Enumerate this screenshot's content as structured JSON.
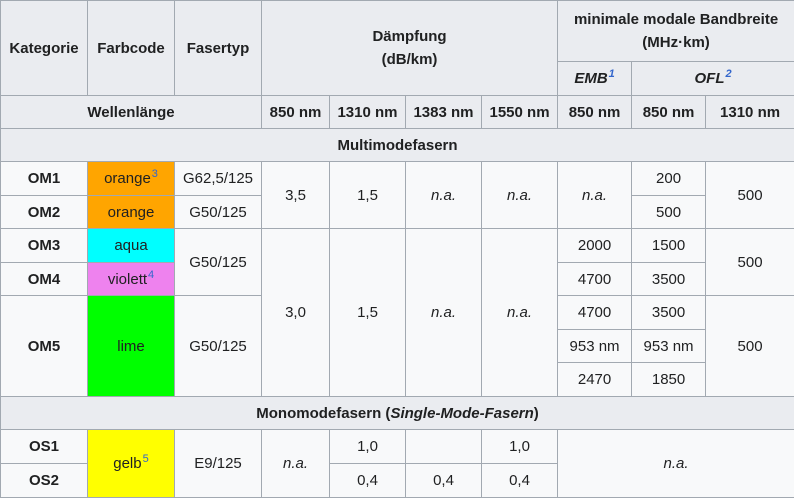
{
  "header": {
    "kategorie": "Kategorie",
    "farbcode": "Farbcode",
    "fasertyp": "Fasertyp",
    "daempfung": "Dämpfung",
    "daempfung_unit": "(dB/km)",
    "bandbreite": "minimale modale Bandbreite",
    "bandbreite_unit": "(MHz·km)",
    "emb": "EMB",
    "emb_ref": "1",
    "ofl": "OFL",
    "ofl_ref": "2",
    "wellenlaenge": "Wellenlänge",
    "wl": [
      "850 nm",
      "1310 nm",
      "1383 nm",
      "1550 nm",
      "850 nm",
      "850 nm",
      "1310 nm"
    ]
  },
  "sections": {
    "multimode": "Multimodefasern",
    "monomode_prefix": "Monomodefasern (",
    "monomode_italic": "Single-Mode-Fasern",
    "monomode_suffix": ")"
  },
  "colors": {
    "orange": "#ffa500",
    "aqua": "#00ffff",
    "violet": "#ee82ee",
    "lime": "#00ff00",
    "gelb": "#ffff00"
  },
  "rows": {
    "om1": {
      "kat": "OM1",
      "farbe": "orange",
      "farbe_ref": "3",
      "typ": "G62,5/125",
      "ofl850": "200"
    },
    "om2": {
      "kat": "OM2",
      "farbe": "orange",
      "typ": "G50/125",
      "ofl850": "500"
    },
    "om12": {
      "d850": "3,5",
      "d1310": "1,5",
      "d1383": "n.a.",
      "d1550": "n.a.",
      "emb": "n.a.",
      "ofl1310": "500"
    },
    "om3": {
      "kat": "OM3",
      "farbe": "aqua",
      "emb": "2000",
      "ofl850": "1500"
    },
    "om4": {
      "kat": "OM4",
      "farbe": "violett",
      "farbe_ref": "4",
      "emb": "4700",
      "ofl850": "3500"
    },
    "om34": {
      "typ": "G50/125",
      "ofl1310": "500"
    },
    "om345": {
      "d850": "3,0",
      "d1310": "1,5",
      "d1383": "n.a.",
      "d1550": "n.a."
    },
    "om5": {
      "kat": "OM5",
      "farbe": "lime",
      "typ": "G50/125",
      "r1_emb": "4700",
      "r1_ofl850": "3500",
      "r2_emb": "953 nm",
      "r2_ofl850": "953 nm",
      "r3_emb": "2470",
      "r3_ofl850": "1850",
      "ofl1310": "500"
    },
    "os": {
      "farbe": "gelb",
      "farbe_ref": "5",
      "typ": "E9/125",
      "d850": "n.a.",
      "bw": "n.a.",
      "os1": {
        "kat": "OS1",
        "d1310": "1,0",
        "d1383": "",
        "d1550": "1,0"
      },
      "os2": {
        "kat": "OS2",
        "d1310": "0,4",
        "d1383": "0,4",
        "d1550": "0,4"
      }
    }
  }
}
